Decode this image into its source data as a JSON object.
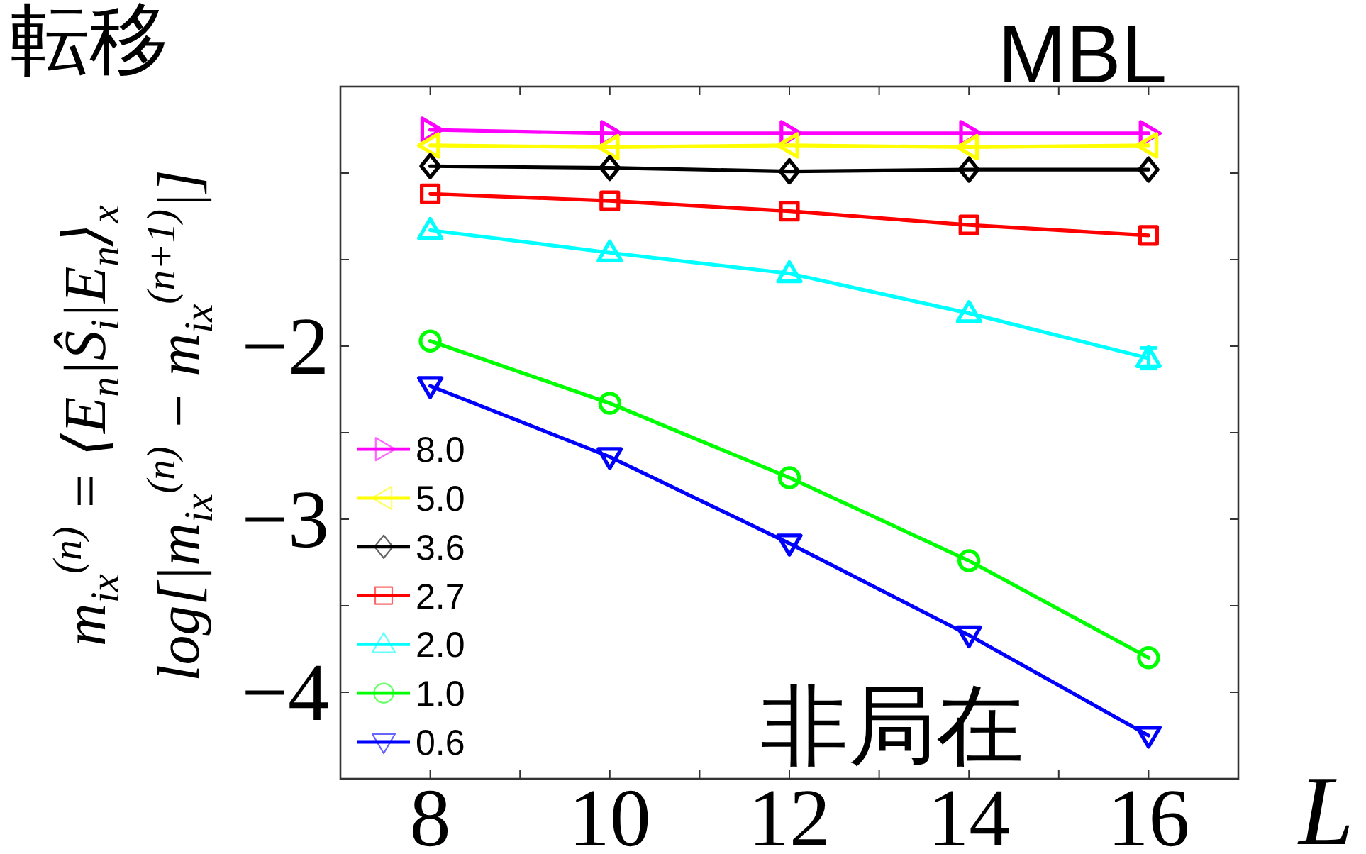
{
  "chart_data": {
    "type": "line",
    "xlabel": "L",
    "ylabel": "m$_{ix}$$^{(n)}$ = ⟨E$_{n}$|Ŝ$_{i}$|E$_{n}$⟩$_{x}$\nlog[|m$_{ix}$$^{(n)}$ − m$_{ix}$$^{(n+1)}$|]",
    "annotations": [
      "転移",
      "MBL",
      "非局在"
    ],
    "x": [
      8,
      10,
      12,
      14,
      16
    ],
    "xlim": [
      7,
      17
    ],
    "xticks": [
      8,
      {
        "value": 9,
        "label": null
      },
      10,
      {
        "value": 11,
        "label": null
      },
      12,
      {
        "value": 13,
        "label": null
      },
      14,
      {
        "value": 15,
        "label": null
      },
      16
    ],
    "ylim": [
      -4.5,
      -0.5
    ],
    "yticks": [
      {
        "value": -4,
        "label": "−4"
      },
      {
        "value": -3.5,
        "label": null
      },
      {
        "value": -3,
        "label": "−3"
      },
      {
        "value": -2.5,
        "label": null
      },
      {
        "value": -2,
        "label": "−2"
      },
      {
        "value": -1.5,
        "label": null
      },
      {
        "value": -1,
        "label": null
      }
    ],
    "legend": "bottom left",
    "series": [
      {
        "name": "8.0",
        "color": "#ff00ff",
        "marker": "triangle-right",
        "values": [
          -0.75,
          -0.77,
          -0.77,
          -0.77,
          -0.77
        ]
      },
      {
        "name": "5.0",
        "color": "#ffff00",
        "marker": "triangle-left",
        "values": [
          -0.84,
          -0.85,
          -0.84,
          -0.85,
          -0.84
        ]
      },
      {
        "name": "3.6",
        "color": "#000000",
        "marker": "diamond",
        "values": [
          -0.96,
          -0.97,
          -0.99,
          -0.98,
          -0.98
        ]
      },
      {
        "name": "2.7",
        "color": "#ff0000",
        "marker": "square",
        "values": [
          -1.12,
          -1.16,
          -1.22,
          -1.3,
          -1.36
        ]
      },
      {
        "name": "2.0",
        "color": "#00ffff",
        "marker": "triangle",
        "values": [
          -1.33,
          -1.46,
          -1.58,
          -1.81,
          -2.07
        ],
        "errors": [
          null,
          null,
          null,
          null,
          0.06
        ]
      },
      {
        "name": "1.0",
        "color": "#00ff00",
        "marker": "circle",
        "values": [
          -1.97,
          -2.33,
          -2.76,
          -3.24,
          -3.8
        ]
      },
      {
        "name": "0.6",
        "color": "#0000ff",
        "marker": "triangle-down",
        "values": [
          -2.23,
          -2.64,
          -3.14,
          -3.67,
          -4.25
        ]
      }
    ]
  }
}
